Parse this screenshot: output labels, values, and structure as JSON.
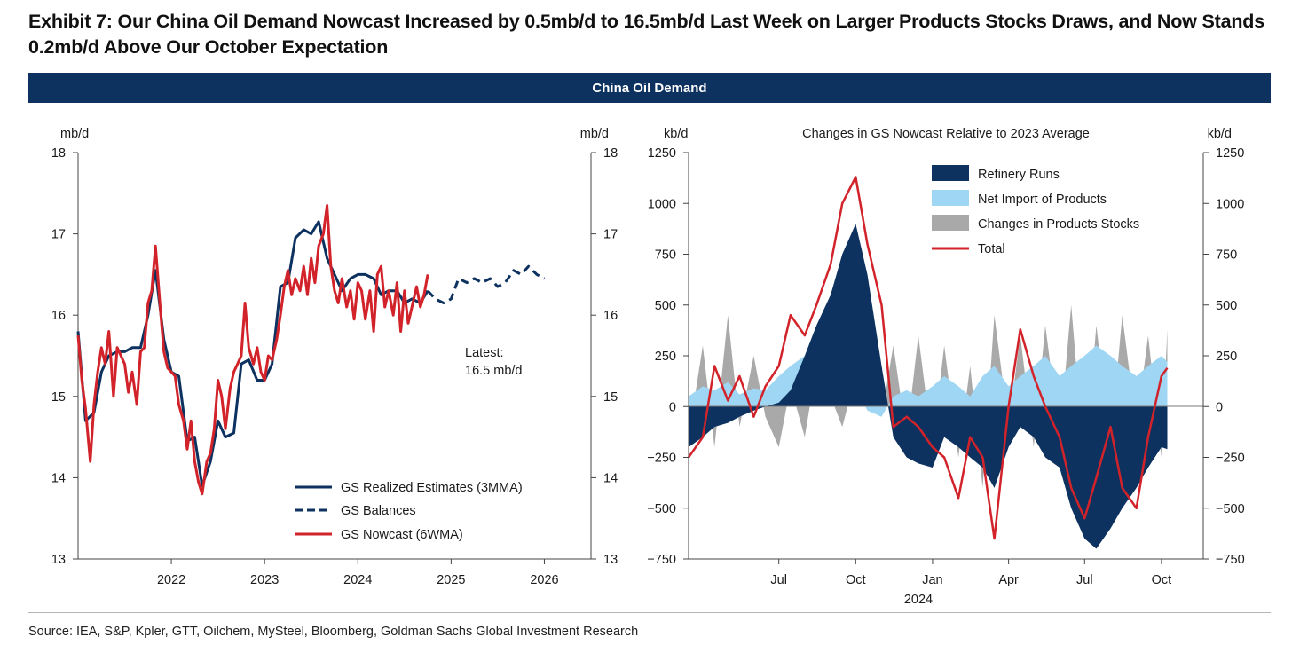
{
  "title": "Exhibit 7: Our China Oil Demand Nowcast Increased by 0.5mb/d to 16.5mb/d Last Week on Larger Products Stocks Draws, and Now Stands 0.2mb/d Above Our October Expectation",
  "banner": "China Oil Demand",
  "source": "Source: IEA, S&P, Kpler, GTT, Oilchem, MySteel, Bloomberg, Goldman Sachs Global Investment Research",
  "colors": {
    "navy": "#0d3260",
    "lightblue": "#9fd6f3",
    "gray": "#a9a9a9",
    "red": "#d2232a",
    "banner": "#0d3260"
  },
  "chart_data": [
    {
      "type": "line",
      "title": "",
      "ylabel_left": "mb/d",
      "ylabel_right": "mb/d",
      "ylim": [
        13,
        18
      ],
      "yticks": [
        13,
        14,
        15,
        16,
        17,
        18
      ],
      "xlim": [
        2021.0,
        2026.5
      ],
      "xticks": [
        2022,
        2023,
        2024,
        2025,
        2026
      ],
      "xtick_labels": [
        "2022",
        "2023",
        "2024",
        "2025",
        "2026"
      ],
      "annotation": {
        "line1": "Latest:",
        "line2": "16.5 mb/d"
      },
      "legend_position": "bottom-right",
      "series": [
        {
          "name": "GS Realized Estimates (3MMA)",
          "style": "solid",
          "color": "#0d3260",
          "points": [
            [
              2021.0,
              15.8
            ],
            [
              2021.08,
              14.7
            ],
            [
              2021.17,
              14.8
            ],
            [
              2021.25,
              15.3
            ],
            [
              2021.33,
              15.5
            ],
            [
              2021.42,
              15.55
            ],
            [
              2021.5,
              15.55
            ],
            [
              2021.58,
              15.6
            ],
            [
              2021.67,
              15.6
            ],
            [
              2021.75,
              16.0
            ],
            [
              2021.83,
              16.55
            ],
            [
              2021.92,
              15.7
            ],
            [
              2022.0,
              15.3
            ],
            [
              2022.08,
              15.25
            ],
            [
              2022.17,
              14.45
            ],
            [
              2022.25,
              14.5
            ],
            [
              2022.33,
              13.9
            ],
            [
              2022.42,
              14.2
            ],
            [
              2022.5,
              14.7
            ],
            [
              2022.58,
              14.5
            ],
            [
              2022.67,
              14.55
            ],
            [
              2022.75,
              15.4
            ],
            [
              2022.83,
              15.45
            ],
            [
              2022.92,
              15.2
            ],
            [
              2023.0,
              15.2
            ],
            [
              2023.08,
              15.4
            ],
            [
              2023.17,
              16.35
            ],
            [
              2023.25,
              16.4
            ],
            [
              2023.33,
              16.95
            ],
            [
              2023.42,
              17.05
            ],
            [
              2023.5,
              17.0
            ],
            [
              2023.58,
              17.15
            ],
            [
              2023.67,
              16.7
            ],
            [
              2023.75,
              16.5
            ],
            [
              2023.83,
              16.3
            ],
            [
              2023.92,
              16.45
            ],
            [
              2024.0,
              16.5
            ],
            [
              2024.08,
              16.5
            ],
            [
              2024.17,
              16.45
            ],
            [
              2024.25,
              16.25
            ],
            [
              2024.33,
              16.3
            ],
            [
              2024.42,
              16.3
            ],
            [
              2024.5,
              16.15
            ],
            [
              2024.58,
              16.2
            ],
            [
              2024.67,
              16.15
            ],
            [
              2024.75,
              16.3
            ]
          ]
        },
        {
          "name": "GS Balances",
          "style": "dashed",
          "color": "#0d3260",
          "points": [
            [
              2024.75,
              16.3
            ],
            [
              2024.83,
              16.2
            ],
            [
              2024.92,
              16.15
            ],
            [
              2025.0,
              16.2
            ],
            [
              2025.08,
              16.45
            ],
            [
              2025.17,
              16.4
            ],
            [
              2025.25,
              16.45
            ],
            [
              2025.33,
              16.4
            ],
            [
              2025.42,
              16.45
            ],
            [
              2025.5,
              16.35
            ],
            [
              2025.58,
              16.4
            ],
            [
              2025.67,
              16.55
            ],
            [
              2025.75,
              16.5
            ],
            [
              2025.83,
              16.6
            ],
            [
              2025.92,
              16.5
            ],
            [
              2026.0,
              16.45
            ]
          ]
        },
        {
          "name": "GS Nowcast (6WMA)",
          "style": "solid",
          "color": "#d2232a",
          "points": [
            [
              2021.0,
              15.75
            ],
            [
              2021.04,
              15.2
            ],
            [
              2021.08,
              14.85
            ],
            [
              2021.13,
              14.2
            ],
            [
              2021.17,
              14.9
            ],
            [
              2021.21,
              15.3
            ],
            [
              2021.25,
              15.6
            ],
            [
              2021.29,
              15.4
            ],
            [
              2021.33,
              15.8
            ],
            [
              2021.38,
              15.0
            ],
            [
              2021.42,
              15.6
            ],
            [
              2021.46,
              15.5
            ],
            [
              2021.5,
              15.4
            ],
            [
              2021.54,
              15.05
            ],
            [
              2021.58,
              15.3
            ],
            [
              2021.63,
              14.9
            ],
            [
              2021.67,
              15.55
            ],
            [
              2021.71,
              15.6
            ],
            [
              2021.75,
              16.15
            ],
            [
              2021.79,
              16.3
            ],
            [
              2021.83,
              16.85
            ],
            [
              2021.88,
              16.1
            ],
            [
              2021.92,
              15.55
            ],
            [
              2021.96,
              15.35
            ],
            [
              2022.0,
              15.3
            ],
            [
              2022.04,
              15.25
            ],
            [
              2022.08,
              14.9
            ],
            [
              2022.13,
              14.7
            ],
            [
              2022.17,
              14.35
            ],
            [
              2022.21,
              14.7
            ],
            [
              2022.25,
              14.2
            ],
            [
              2022.29,
              13.95
            ],
            [
              2022.33,
              13.8
            ],
            [
              2022.38,
              14.2
            ],
            [
              2022.42,
              14.3
            ],
            [
              2022.46,
              14.6
            ],
            [
              2022.5,
              15.2
            ],
            [
              2022.54,
              15.0
            ],
            [
              2022.58,
              14.6
            ],
            [
              2022.63,
              15.1
            ],
            [
              2022.67,
              15.3
            ],
            [
              2022.71,
              15.4
            ],
            [
              2022.75,
              15.5
            ],
            [
              2022.79,
              16.15
            ],
            [
              2022.83,
              15.6
            ],
            [
              2022.88,
              15.4
            ],
            [
              2022.92,
              15.6
            ],
            [
              2022.96,
              15.3
            ],
            [
              2023.0,
              15.2
            ],
            [
              2023.04,
              15.5
            ],
            [
              2023.08,
              15.45
            ],
            [
              2023.13,
              15.7
            ],
            [
              2023.17,
              16.0
            ],
            [
              2023.21,
              16.35
            ],
            [
              2023.25,
              16.55
            ],
            [
              2023.29,
              16.25
            ],
            [
              2023.33,
              16.45
            ],
            [
              2023.38,
              16.3
            ],
            [
              2023.42,
              16.6
            ],
            [
              2023.46,
              16.25
            ],
            [
              2023.5,
              16.7
            ],
            [
              2023.54,
              16.4
            ],
            [
              2023.58,
              16.85
            ],
            [
              2023.63,
              17.0
            ],
            [
              2023.67,
              17.35
            ],
            [
              2023.71,
              16.6
            ],
            [
              2023.75,
              16.3
            ],
            [
              2023.79,
              16.15
            ],
            [
              2023.83,
              16.45
            ],
            [
              2023.88,
              16.1
            ],
            [
              2023.92,
              16.3
            ],
            [
              2023.96,
              15.95
            ],
            [
              2024.0,
              16.4
            ],
            [
              2024.04,
              16.3
            ],
            [
              2024.08,
              15.95
            ],
            [
              2024.13,
              16.3
            ],
            [
              2024.17,
              15.8
            ],
            [
              2024.21,
              16.5
            ],
            [
              2024.25,
              16.6
            ],
            [
              2024.29,
              16.1
            ],
            [
              2024.33,
              16.3
            ],
            [
              2024.38,
              16.0
            ],
            [
              2024.42,
              16.4
            ],
            [
              2024.46,
              15.8
            ],
            [
              2024.5,
              16.3
            ],
            [
              2024.54,
              15.9
            ],
            [
              2024.58,
              16.1
            ],
            [
              2024.63,
              16.35
            ],
            [
              2024.67,
              16.1
            ],
            [
              2024.71,
              16.25
            ],
            [
              2024.75,
              16.5
            ]
          ]
        }
      ]
    },
    {
      "type": "area",
      "title": "Changes in GS Nowcast Relative to 2023 Average",
      "ylabel_left": "kb/d",
      "ylabel_right": "kb/d",
      "ylim": [
        -750,
        1250
      ],
      "yticks": [
        -750,
        -500,
        -250,
        0,
        250,
        500,
        750,
        1000,
        1250
      ],
      "xticks": [
        "2023-07-01",
        "2023-10-01",
        "2024-01-01",
        "2024-04-01",
        "2024-07-01",
        "2024-10-01"
      ],
      "xtick_labels": [
        "Jul",
        "Oct",
        "Jan",
        "Apr",
        "Jul",
        "Oct"
      ],
      "year_label": "2024",
      "legend_position": "top-right",
      "dates": [
        "2023-03-15",
        "2023-04-01",
        "2023-04-15",
        "2023-05-01",
        "2023-05-15",
        "2023-06-01",
        "2023-06-15",
        "2023-07-01",
        "2023-07-15",
        "2023-08-01",
        "2023-08-15",
        "2023-09-01",
        "2023-09-15",
        "2023-10-01",
        "2023-10-15",
        "2023-11-01",
        "2023-11-15",
        "2023-12-01",
        "2023-12-15",
        "2024-01-01",
        "2024-01-15",
        "2024-02-01",
        "2024-02-15",
        "2024-03-01",
        "2024-03-15",
        "2024-04-01",
        "2024-04-15",
        "2024-05-01",
        "2024-05-15",
        "2024-06-01",
        "2024-06-15",
        "2024-07-01",
        "2024-07-15",
        "2024-08-01",
        "2024-08-15",
        "2024-09-01",
        "2024-09-15",
        "2024-10-01",
        "2024-10-08"
      ],
      "series": [
        {
          "name": "Refinery Runs",
          "kind": "area",
          "color": "#0d3260",
          "values": [
            -200,
            -150,
            -100,
            -80,
            -50,
            -20,
            0,
            20,
            80,
            250,
            400,
            550,
            750,
            900,
            650,
            200,
            -150,
            -250,
            -280,
            -300,
            -150,
            -200,
            -250,
            -300,
            -400,
            -200,
            -100,
            -150,
            -250,
            -300,
            -500,
            -650,
            -700,
            -600,
            -500,
            -400,
            -300,
            -200,
            -210
          ]
        },
        {
          "name": "Net Import of Products",
          "kind": "area",
          "color": "#9fd6f3",
          "values": [
            50,
            100,
            80,
            120,
            60,
            90,
            80,
            150,
            200,
            250,
            200,
            250,
            200,
            100,
            -20,
            -50,
            50,
            80,
            50,
            100,
            150,
            100,
            50,
            150,
            200,
            100,
            150,
            200,
            250,
            150,
            200,
            250,
            300,
            250,
            200,
            150,
            200,
            250,
            220
          ]
        },
        {
          "name": "Changes in Products Stocks",
          "kind": "area",
          "color": "#a9a9a9",
          "values": [
            -150,
            300,
            -200,
            450,
            -100,
            250,
            -50,
            -200,
            100,
            -150,
            200,
            50,
            -100,
            150,
            400,
            -50,
            300,
            -150,
            350,
            -200,
            300,
            -250,
            200,
            -400,
            450,
            -100,
            350,
            -200,
            400,
            -150,
            500,
            -300,
            400,
            -200,
            450,
            -100,
            350,
            -250,
            380
          ]
        },
        {
          "name": "Total",
          "kind": "line",
          "color": "#d2232a",
          "values": [
            -250,
            -150,
            200,
            30,
            150,
            -50,
            100,
            200,
            450,
            350,
            500,
            700,
            1000,
            1130,
            800,
            500,
            -100,
            -50,
            -100,
            -200,
            -250,
            -450,
            -150,
            -250,
            -650,
            0,
            380,
            150,
            0,
            -150,
            -400,
            -550,
            -350,
            -100,
            -400,
            -500,
            -150,
            150,
            190
          ]
        }
      ]
    }
  ]
}
